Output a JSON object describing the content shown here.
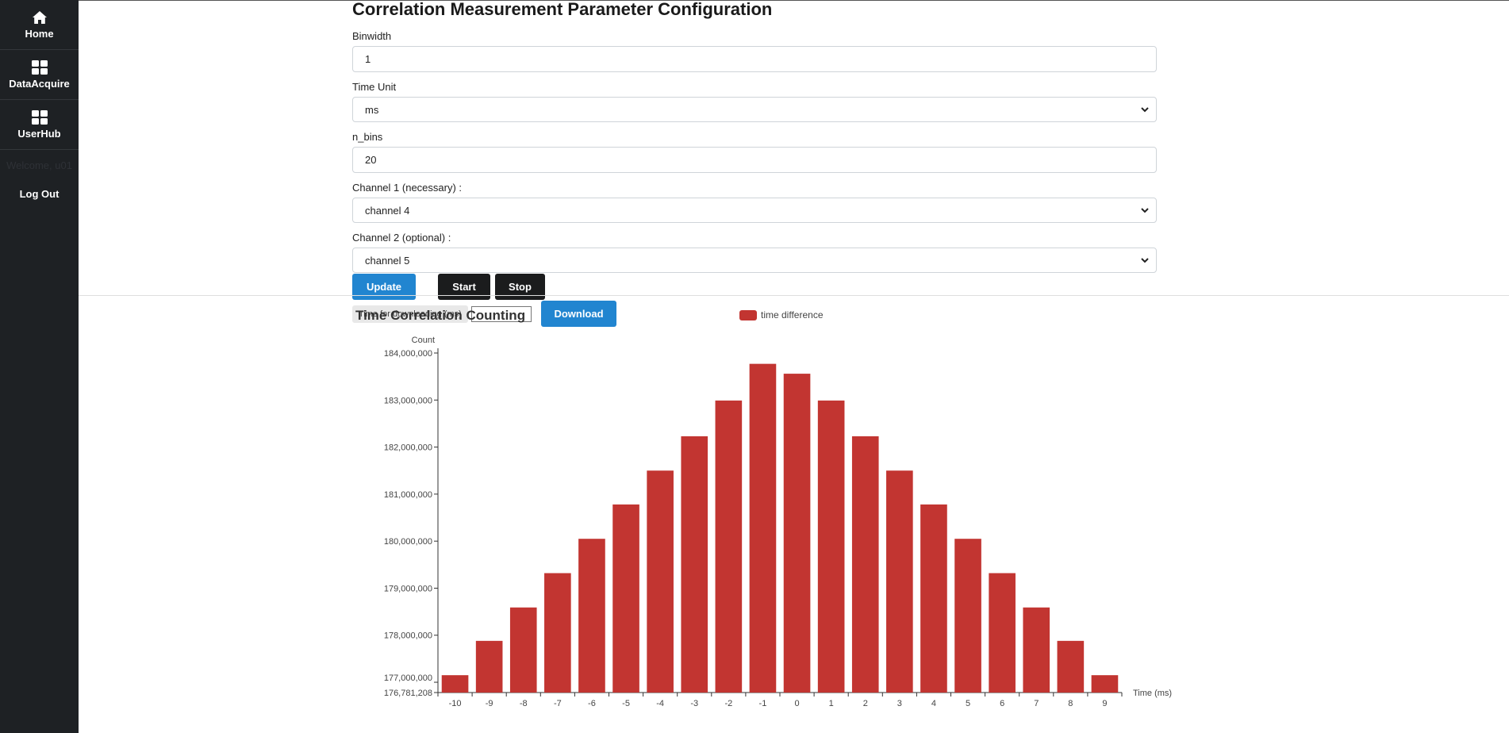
{
  "sidebar": {
    "items": [
      {
        "label": "Home",
        "icon": "home-icon"
      },
      {
        "label": "DataAcquire",
        "icon": "grid-icon"
      },
      {
        "label": "UserHub",
        "icon": "grid-icon"
      }
    ],
    "welcome": "Welcome, u01",
    "logout": "Log Out"
  },
  "form": {
    "title": "Correlation Measurement Parameter Configuration",
    "binwidth_label": "Binwidth",
    "binwidth_value": "1",
    "time_unit_label": "Time Unit",
    "time_unit_value": "ms",
    "n_bins_label": "n_bins",
    "n_bins_value": "20",
    "channel1_label": "Channel 1 (necessary) :",
    "channel1_value": "channel 4",
    "channel2_label": "Channel 2 (optional) :",
    "channel2_value": "channel 5",
    "update_label": "Update",
    "start_label": "Start",
    "stop_label": "Stop",
    "download_time_label": "Time for downloading (ms)",
    "download_time_value": "",
    "download_label": "Download"
  },
  "colors": {
    "accent": "#2185d0",
    "sidebar_bg": "#1e2124",
    "bar": "#c23531"
  },
  "chart_data": {
    "type": "bar",
    "title": "Time Correlation Counting",
    "ylabel": "Count",
    "xlabel": "Time (ms)",
    "legend": [
      "time difference"
    ],
    "legend_position": "top-center",
    "categories": [
      "-10",
      "-9",
      "-8",
      "-7",
      "-6",
      "-5",
      "-4",
      "-3",
      "-2",
      "-1",
      "0",
      "1",
      "2",
      "3",
      "4",
      "5",
      "6",
      "7",
      "8",
      "9"
    ],
    "series": [
      {
        "name": "time difference",
        "values": [
          177150000,
          177880000,
          178590000,
          179320000,
          180050000,
          180780000,
          181500000,
          182230000,
          182990000,
          183770000,
          183560000,
          182990000,
          182230000,
          181500000,
          180780000,
          180050000,
          179320000,
          178590000,
          177880000,
          177150000
        ]
      }
    ],
    "y_ticks": [
      "176,781,208",
      "177,000,000",
      "178,000,000",
      "179,000,000",
      "180,000,000",
      "181,000,000",
      "182,000,000",
      "183,000,000",
      "184,000,000"
    ],
    "ylim": [
      176781208,
      184000000
    ],
    "grid": false
  }
}
